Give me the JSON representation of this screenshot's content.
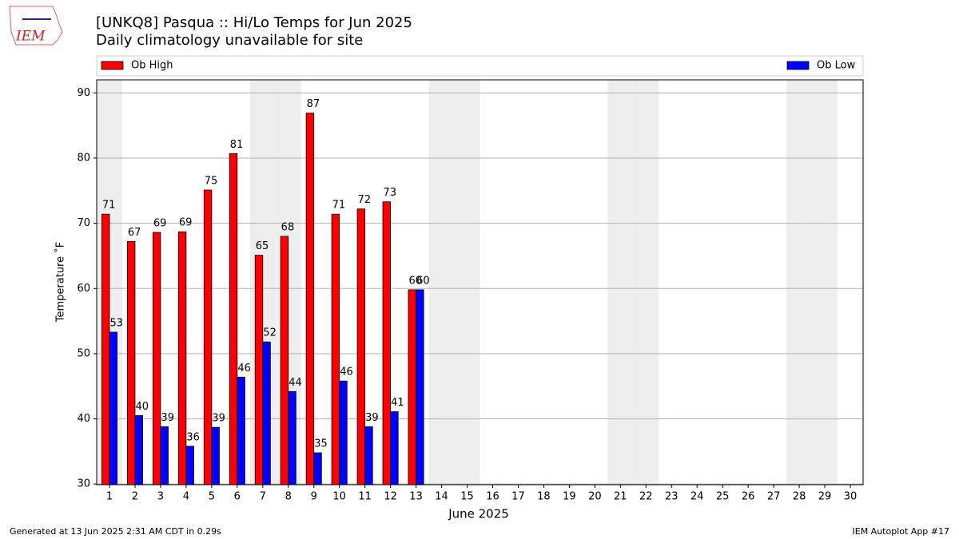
{
  "chart_data": {
    "type": "bar",
    "title": "[UNKQ8] Pasqua :: Hi/Lo Temps for Jun 2025",
    "subtitle": "Daily climatology unavailable for site",
    "xlabel": "June 2025",
    "ylabel": "Temperature ˚F",
    "categories": [
      "1",
      "2",
      "3",
      "4",
      "5",
      "6",
      "7",
      "8",
      "9",
      "10",
      "11",
      "12",
      "13",
      "14",
      "15",
      "16",
      "17",
      "18",
      "19",
      "20",
      "21",
      "22",
      "23",
      "24",
      "25",
      "26",
      "27",
      "28",
      "29",
      "30"
    ],
    "series": [
      {
        "name": "Ob High",
        "color": "#ff0000",
        "values": [
          71.4,
          67.2,
          68.6,
          68.7,
          75.1,
          80.7,
          65.1,
          68.0,
          86.9,
          71.4,
          72.2,
          73.3,
          59.8,
          null,
          null,
          null,
          null,
          null,
          null,
          null,
          null,
          null,
          null,
          null,
          null,
          null,
          null,
          null,
          null,
          null
        ],
        "value_labels": [
          "71",
          "67",
          "69",
          "69",
          "75",
          "81",
          "65",
          "68",
          "87",
          "71",
          "72",
          "73",
          "60",
          null,
          null,
          null,
          null,
          null,
          null,
          null,
          null,
          null,
          null,
          null,
          null,
          null,
          null,
          null,
          null,
          null
        ]
      },
      {
        "name": "Ob Low",
        "color": "#0000ff",
        "values": [
          53.3,
          40.5,
          38.8,
          35.8,
          38.7,
          46.4,
          51.8,
          44.2,
          34.8,
          45.8,
          38.8,
          41.1,
          59.8,
          null,
          null,
          null,
          null,
          null,
          null,
          null,
          null,
          null,
          null,
          null,
          null,
          null,
          null,
          null,
          null,
          null
        ],
        "value_labels": [
          "53",
          "40",
          "39",
          "36",
          "39",
          "46",
          "52",
          "44",
          "35",
          "46",
          "39",
          "41",
          "60",
          null,
          null,
          null,
          null,
          null,
          null,
          null,
          null,
          null,
          null,
          null,
          null,
          null,
          null,
          null,
          null,
          null
        ]
      }
    ],
    "ylim": [
      29.9,
      92
    ],
    "yticks": [
      30,
      40,
      50,
      60,
      70,
      80,
      90
    ],
    "grid": true,
    "shaded_days": [
      1,
      7,
      8,
      14,
      15,
      21,
      22,
      28,
      29
    ]
  },
  "logo": "IEM",
  "footer": {
    "left": "Generated at 13 Jun 2025 2:31 AM CDT in 0.29s",
    "right": "IEM Autoplot App #17"
  }
}
